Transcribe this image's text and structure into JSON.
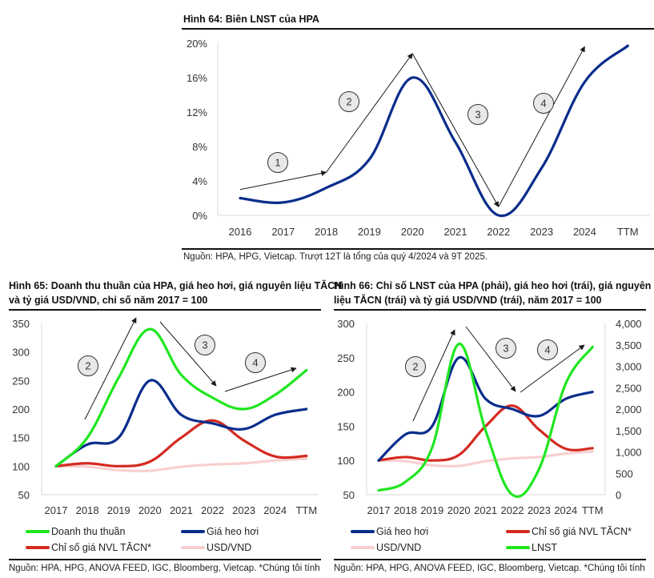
{
  "colors": {
    "navy": "#0a2d8c",
    "green": "#1fe61f",
    "red": "#d42a20",
    "pink": "#f9cfcf",
    "axis": "#d9d9d9",
    "arrow": "#1a1a1a",
    "badge_fill": "#e8e8e8"
  },
  "fig64": {
    "title": "Hình 64: Biên LNST của HPA",
    "source": "Nguồn: HPA, HPG, Vietcap. Trượt 12T là tổng của quý 4/2024 và 9T 2025."
  },
  "fig65": {
    "title_line1": "Hình 65: Doanh thu thuần của HPA, giá heo hơi, giá nguyên liệu TĂCN",
    "title_line2": "và tỷ giá USD/VND, chỉ số năm 2017 = 100",
    "source": "Nguồn: HPA, HPG, ANOVA FEED, IGC, Bloomberg, Vietcap. *Chúng tôi tính"
  },
  "fig66": {
    "title_line1": "Hình 66: Chỉ số LNST của HPA (phải), giá heo hơi (trái), giá nguyên",
    "title_line2": "liệu TĂCN (trái) và tỷ giá USD/VND (trái), năm 2017 = 100",
    "source": "Nguồn: HPA, HPG, ANOVA FEED, IGC, Bloomberg, Vietcap. *Chúng tôi tính"
  },
  "chart_data": [
    {
      "id": "fig64",
      "type": "line",
      "title": "Hình 64: Biên LNST của HPA",
      "xlabel": "",
      "ylabel": "",
      "categories": [
        "2016",
        "2017",
        "2018",
        "2019",
        "2020",
        "2021",
        "2022",
        "2023",
        "2024",
        "TTM"
      ],
      "yticks": [
        "0%",
        "4%",
        "8%",
        "12%",
        "16%",
        "20%"
      ],
      "ylim": [
        0,
        20
      ],
      "y_unit": "%",
      "grid": false,
      "series": [
        {
          "name": "Biên LNST",
          "color": "#0a2d8c",
          "values": [
            2.0,
            1.5,
            3.2,
            6.5,
            16.0,
            8.5,
            0.0,
            5.5,
            15.5,
            19.7
          ]
        }
      ],
      "annotations": [
        {
          "label": "1",
          "type": "arrow",
          "from": [
            2016,
            3.0
          ],
          "to": [
            2018,
            5.0
          ]
        },
        {
          "label": "2",
          "type": "arrow",
          "from": [
            2018,
            5.0
          ],
          "to": [
            2020,
            18.8
          ]
        },
        {
          "label": "3",
          "type": "arrow",
          "from": [
            2020,
            18.8
          ],
          "to": [
            2022,
            1.0
          ]
        },
        {
          "label": "4",
          "type": "arrow",
          "from": [
            2022,
            1.0
          ],
          "to": [
            2024,
            19.6
          ]
        }
      ]
    },
    {
      "id": "fig65",
      "type": "line",
      "title": "Hình 65: Doanh thu thuần của HPA, giá heo hơi, giá nguyên liệu TĂCN và tỷ giá USD/VND, chỉ số năm 2017 = 100",
      "xlabel": "",
      "ylabel": "",
      "categories": [
        "2017",
        "2018",
        "2019",
        "2020",
        "2021",
        "2022",
        "2023",
        "2024",
        "TTM"
      ],
      "yticks": [
        "50",
        "100",
        "150",
        "200",
        "250",
        "300",
        "350"
      ],
      "ylim": [
        50,
        350
      ],
      "grid": false,
      "legend_position": "bottom",
      "series": [
        {
          "name": "Doanh thu thuần",
          "color": "#1fe61f",
          "values": [
            100,
            150,
            255,
            340,
            260,
            220,
            200,
            225,
            268
          ]
        },
        {
          "name": "Giá heo hơi",
          "color": "#0a2d8c",
          "values": [
            100,
            138,
            150,
            250,
            190,
            175,
            165,
            190,
            200
          ]
        },
        {
          "name": "Chỉ số giá NVL TĂCN*",
          "color": "#d42a20",
          "values": [
            100,
            105,
            100,
            108,
            150,
            180,
            145,
            117,
            118
          ]
        },
        {
          "name": "USD/VND",
          "color": "#f9cfcf",
          "values": [
            100,
            99,
            93,
            92,
            99,
            103,
            105,
            110,
            113
          ]
        }
      ],
      "annotations": [
        {
          "label": "2",
          "type": "arrow",
          "from": [
            "2018",
            180
          ],
          "to": [
            "2020",
            355
          ]
        },
        {
          "label": "3",
          "type": "arrow",
          "from": [
            "2020",
            340
          ],
          "to": [
            "2022",
            240
          ]
        },
        {
          "label": "4",
          "type": "arrow",
          "from": [
            "2022",
            230
          ],
          "to": [
            "TTM",
            275
          ]
        }
      ]
    },
    {
      "id": "fig66",
      "type": "line",
      "title": "Hình 66: Chỉ số LNST của HPA (phải), giá heo hơi (trái), giá nguyên liệu TĂCN (trái) và tỷ giá USD/VND (trái), năm 2017 = 100",
      "xlabel": "",
      "ylabel": "",
      "categories": [
        "2017",
        "2018",
        "2019",
        "2020",
        "2021",
        "2022",
        "2023",
        "2024",
        "TTM"
      ],
      "yticks_left": [
        "50",
        "100",
        "150",
        "200",
        "250",
        "300"
      ],
      "ylim_left": [
        50,
        300
      ],
      "yticks_right": [
        "0",
        "500",
        "1,000",
        "1,500",
        "2,000",
        "2,500",
        "3,000",
        "3,500",
        "4,000"
      ],
      "ylim_right": [
        0,
        4000
      ],
      "grid": false,
      "legend_position": "bottom",
      "series": [
        {
          "name": "Giá heo hơi",
          "axis": "left",
          "color": "#0a2d8c",
          "values": [
            100,
            138,
            150,
            250,
            190,
            175,
            165,
            190,
            200
          ]
        },
        {
          "name": "Chỉ số giá NVL TĂCN*",
          "axis": "left",
          "color": "#d42a20",
          "values": [
            100,
            105,
            100,
            108,
            150,
            180,
            145,
            117,
            118
          ]
        },
        {
          "name": "USD/VND",
          "axis": "left",
          "color": "#f9cfcf",
          "values": [
            100,
            99,
            93,
            92,
            99,
            103,
            105,
            110,
            113
          ]
        },
        {
          "name": "LNST",
          "axis": "right",
          "color": "#1fe61f",
          "values": [
            100,
            300,
            1100,
            3520,
            1500,
            0,
            600,
            2600,
            3450
          ]
        }
      ],
      "annotations": [
        {
          "label": "2",
          "type": "arrow",
          "from": [
            "2018",
            160
          ],
          "to": [
            "2020",
            290
          ]
        },
        {
          "label": "3",
          "type": "arrow",
          "from": [
            "2020",
            295
          ],
          "to": [
            "2022",
            195
          ]
        },
        {
          "label": "4",
          "type": "arrow",
          "from": [
            "2022",
            195
          ],
          "to": [
            "TTM",
            265
          ]
        }
      ]
    }
  ]
}
